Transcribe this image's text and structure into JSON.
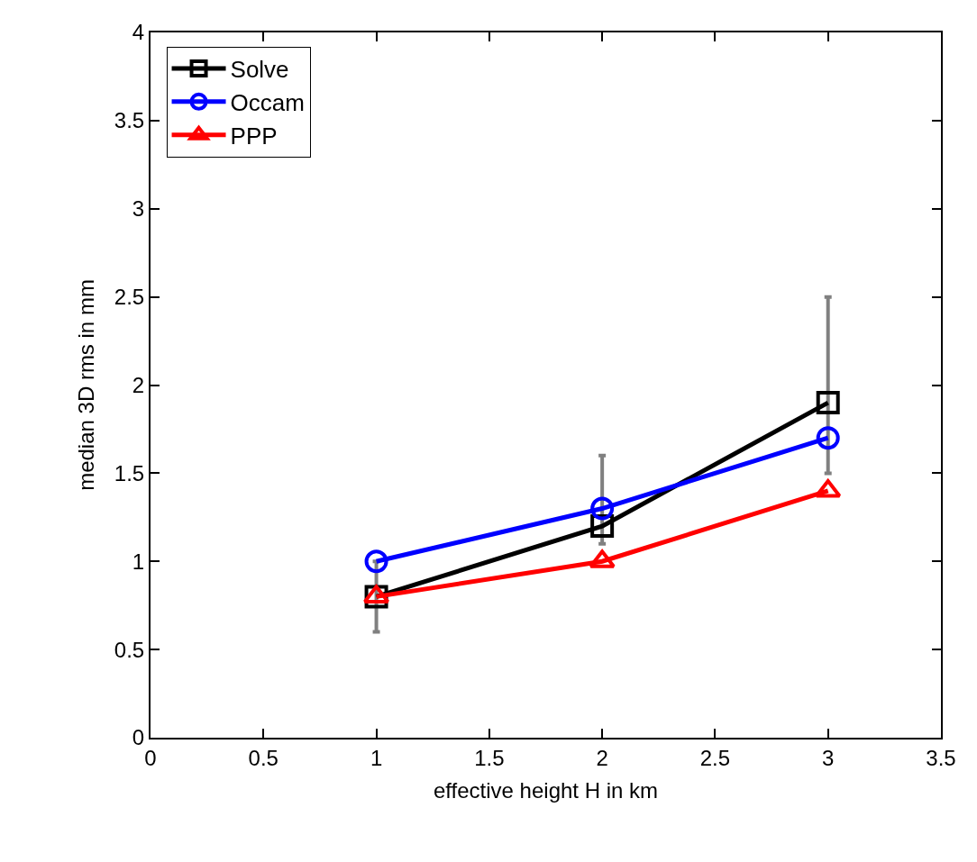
{
  "chart_data": {
    "type": "line",
    "xlabel": "effective height H in km",
    "ylabel": "median 3D rms in mm",
    "x": [
      1,
      2,
      3
    ],
    "series": [
      {
        "name": "Solve",
        "color": "#000000",
        "marker": "square",
        "values": [
          0.8,
          1.2,
          1.9
        ],
        "errors": [
          [
            0.6,
            1.0
          ],
          [
            1.1,
            1.6
          ],
          [
            1.5,
            2.5
          ]
        ]
      },
      {
        "name": "Occam",
        "color": "#0000ff",
        "marker": "circle",
        "values": [
          1.0,
          1.3,
          1.7
        ]
      },
      {
        "name": "PPP",
        "color": "#ff0000",
        "marker": "triangle",
        "values": [
          0.8,
          1.0,
          1.4
        ]
      }
    ],
    "xlim": [
      0,
      3.5
    ],
    "xticks": [
      0,
      0.5,
      1,
      1.5,
      2,
      2.5,
      3,
      3.5
    ],
    "ylim": [
      0,
      4
    ],
    "yticks": [
      0,
      0.5,
      1,
      1.5,
      2,
      2.5,
      3,
      3.5,
      4
    ],
    "legend": "top left",
    "line_style": "solid"
  }
}
